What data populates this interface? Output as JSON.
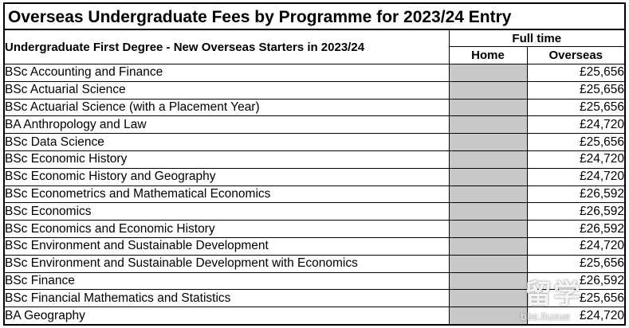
{
  "document": {
    "title": "Overseas Undergraduate Fees by Programme for 2023/24 Entry",
    "section_heading": "Undergraduate First Degree - New Overseas Starters in 2023/24",
    "mode_heading": "Full time",
    "columns": {
      "home": "Home",
      "overseas": "Overseas"
    },
    "rows": [
      {
        "programme": "BSc Accounting and Finance",
        "home": "",
        "overseas": "£25,656"
      },
      {
        "programme": "BSc Actuarial Science",
        "home": "",
        "overseas": "£25,656"
      },
      {
        "programme": "BSc Actuarial Science (with a Placement Year)",
        "home": "",
        "overseas": "£25,656"
      },
      {
        "programme": "BA Anthropology and Law",
        "home": "",
        "overseas": "£24,720"
      },
      {
        "programme": "BSc Data Science",
        "home": "",
        "overseas": "£25,656"
      },
      {
        "programme": "BSc Economic History",
        "home": "",
        "overseas": "£24,720"
      },
      {
        "programme": "BSc Economic History and Geography",
        "home": "",
        "overseas": "£24,720"
      },
      {
        "programme": "BSc Econometrics and Mathematical Economics",
        "home": "",
        "overseas": "£26,592"
      },
      {
        "programme": "BSc Economics",
        "home": "",
        "overseas": "£26,592"
      },
      {
        "programme": "BSc Economics and Economic History",
        "home": "",
        "overseas": "£26,592"
      },
      {
        "programme": "BSc Environment and Sustainable Development",
        "home": "",
        "overseas": "£24,720"
      },
      {
        "programme": "BSc Environment and Sustainable Development with Economics",
        "home": "",
        "overseas": "£25,656"
      },
      {
        "programme": "BSc Finance",
        "home": "",
        "overseas": "£26,592"
      },
      {
        "programme": "BSc Financial Mathematics and Statistics",
        "home": "",
        "overseas": "£25,656"
      },
      {
        "programme": "BA Geography",
        "home": "",
        "overseas": "£24,720"
      }
    ],
    "home_cell_color": "#c8c8c8"
  },
  "watermark": {
    "mark": "留学",
    "domain": "bbs.liuxue"
  }
}
